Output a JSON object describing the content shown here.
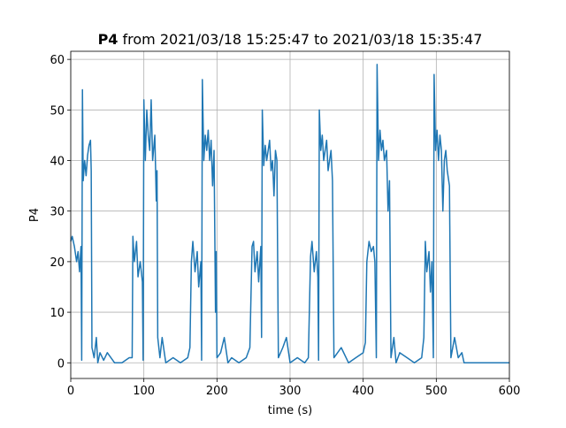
{
  "chart_data": {
    "type": "line",
    "title_parts": [
      "P4",
      "from 2021/03/18 15:25:47 to 2021/03/18 15:35:47"
    ],
    "x_label": "time (s)",
    "y_label": "P4",
    "xlim": [
      0,
      600
    ],
    "ylim": [
      -3.1,
      61.6
    ],
    "xticks": [
      0,
      100,
      200,
      300,
      400,
      500,
      600
    ],
    "yticks": [
      0,
      10,
      20,
      30,
      40,
      50,
      60
    ],
    "grid": true,
    "x": [
      0,
      2,
      5,
      8,
      10,
      12,
      14,
      15,
      16,
      17,
      19,
      21,
      23,
      25,
      27,
      28,
      29,
      32,
      35,
      37,
      40,
      45,
      50,
      55,
      60,
      65,
      70,
      80,
      84,
      85,
      87,
      90,
      92,
      95,
      98,
      99,
      100,
      102,
      104,
      106,
      108,
      110,
      112,
      115,
      117,
      118,
      119,
      122,
      125,
      130,
      140,
      150,
      160,
      163,
      165,
      167,
      170,
      173,
      175,
      178,
      179,
      180,
      182,
      184,
      186,
      188,
      190,
      192,
      194,
      196,
      198,
      199,
      200,
      205,
      210,
      215,
      220,
      230,
      240,
      245,
      248,
      250,
      252,
      255,
      257,
      260,
      261,
      262,
      264,
      266,
      268,
      270,
      272,
      274,
      276,
      278,
      280,
      282,
      284,
      290,
      295,
      300,
      310,
      320,
      325,
      328,
      330,
      333,
      336,
      338,
      339,
      340,
      342,
      344,
      346,
      348,
      350,
      352,
      354,
      356,
      358,
      360,
      365,
      370,
      380,
      390,
      400,
      403,
      405,
      408,
      411,
      414,
      416,
      418,
      419,
      421,
      423,
      425,
      427,
      429,
      432,
      434,
      436,
      438,
      442,
      445,
      450,
      460,
      470,
      480,
      483,
      485,
      487,
      490,
      492,
      494,
      496,
      497,
      499,
      501,
      503,
      505,
      507,
      509,
      511,
      513,
      515,
      518,
      520,
      525,
      530,
      535,
      538,
      600
    ],
    "series": [
      {
        "name": "P4",
        "color": "#1f77b4",
        "values": [
          24,
          25,
          23,
          20,
          22,
          18,
          23,
          0.5,
          54,
          36,
          40,
          37,
          41,
          43,
          44,
          38,
          3,
          1,
          5,
          0,
          2,
          0.5,
          2,
          1,
          0,
          0,
          0,
          1,
          1,
          25,
          20,
          24,
          17,
          20,
          16,
          0.5,
          52,
          40,
          50,
          45,
          42,
          52,
          40,
          45,
          32,
          38,
          5,
          1,
          5,
          0,
          1,
          0,
          1,
          3,
          20,
          24,
          18,
          22,
          15,
          20,
          0.5,
          56,
          40,
          45,
          42,
          46,
          40,
          44,
          35,
          42,
          10,
          22,
          1,
          2,
          5,
          0,
          1,
          0,
          1,
          3,
          23,
          24,
          18,
          22,
          16,
          23,
          5,
          50,
          39,
          43,
          40,
          42,
          44,
          38,
          40,
          33,
          42,
          40,
          1,
          3,
          5,
          0,
          1,
          0,
          1,
          21,
          24,
          18,
          22,
          17,
          0.5,
          50,
          42,
          45,
          40,
          42,
          44,
          38,
          40,
          42,
          36,
          1,
          2,
          3,
          0,
          1,
          2,
          4,
          20,
          24,
          22,
          23,
          20,
          1,
          59,
          40,
          46,
          42,
          44,
          40,
          42,
          30,
          36,
          1,
          5,
          0,
          2,
          1,
          0,
          1,
          5,
          24,
          18,
          22,
          14,
          20,
          1,
          57,
          42,
          46,
          40,
          45,
          42,
          30,
          40,
          42,
          38,
          35,
          1,
          5,
          1,
          2,
          0,
          0
        ]
      }
    ]
  }
}
